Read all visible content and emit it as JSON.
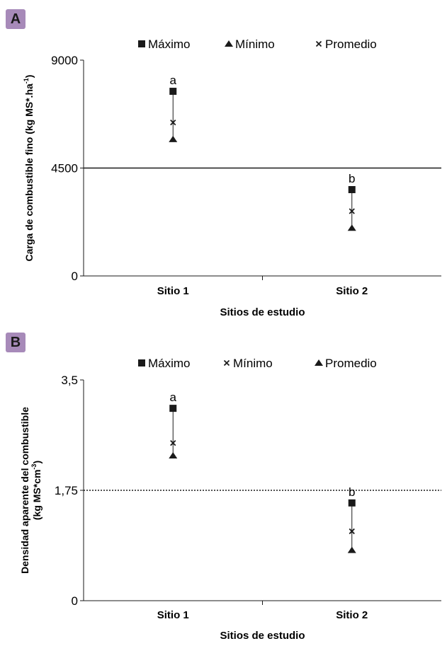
{
  "panels": {
    "a_label": "A",
    "b_label": "B",
    "badge_color": "#a78ab9"
  },
  "chart_data": [
    {
      "type": "scatter",
      "panel": "A",
      "title": "",
      "ylabel": "Carga de combustible fino (kg MS*.ha-1)",
      "ylabel_main": "Carga de combustible fino (kg MS*.ha",
      "ylabel_sup": "-1",
      "ylabel_end": ")",
      "xlabel": "Sitios de estudio",
      "categories": [
        "Sitio 1",
        "Sitio 2"
      ],
      "ylim": [
        0,
        9000
      ],
      "yticks": [
        "0",
        "4500",
        "9000"
      ],
      "reference_line": {
        "value": 4500,
        "style": "solid"
      },
      "legend_position": "top",
      "series": [
        {
          "name": "Máximo",
          "marker": "square",
          "values": [
            7700,
            3600
          ]
        },
        {
          "name": "Mínimo",
          "marker": "triangle",
          "values": [
            5700,
            2000
          ]
        },
        {
          "name": "Promedio",
          "marker": "x",
          "values": [
            6400,
            2700
          ]
        }
      ],
      "annotations": [
        "a",
        "b"
      ]
    },
    {
      "type": "scatter",
      "panel": "B",
      "title": "",
      "ylabel": "Densidad aparente del combustible (kg MS*cm-3)",
      "ylabel_line1": "Densidad aparente del combustible",
      "ylabel_main": "(kg MS*cm",
      "ylabel_sup": "-3",
      "ylabel_end": ")",
      "xlabel": "Sitios de estudio",
      "categories": [
        "Sitio 1",
        "Sitio 2"
      ],
      "ylim": [
        0,
        3.5
      ],
      "yticks": [
        "0",
        "1,75",
        "3,5"
      ],
      "reference_line": {
        "value": 1.75,
        "style": "dotted"
      },
      "legend_position": "top",
      "series": [
        {
          "name": "Máximo",
          "marker": "square",
          "values": [
            3.05,
            1.55
          ]
        },
        {
          "name": "Mínimo",
          "marker": "x",
          "values": [
            2.5,
            1.1
          ]
        },
        {
          "name": "Promedio",
          "marker": "triangle",
          "values": [
            2.3,
            0.8
          ]
        }
      ],
      "annotations": [
        "a",
        "b"
      ]
    }
  ]
}
